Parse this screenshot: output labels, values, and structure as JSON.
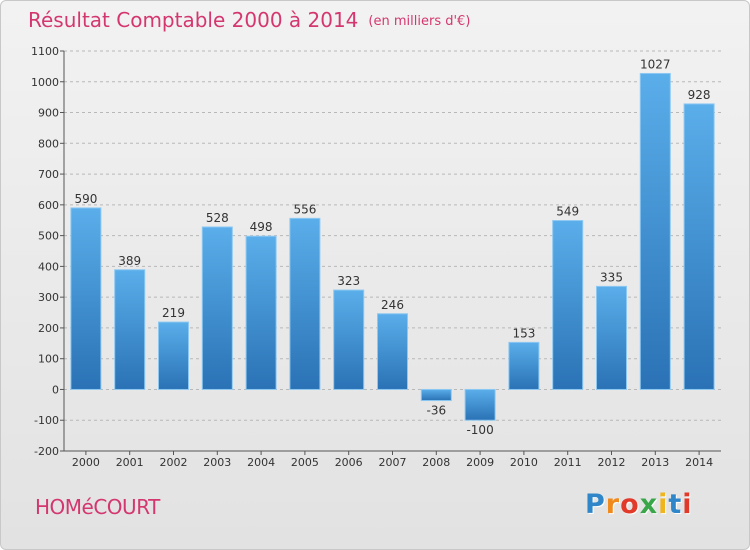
{
  "header": {
    "title": "Résultat Comptable 2000 à 2014",
    "unit": "(en milliers d'€)"
  },
  "footer": {
    "commune": "HOMéCOURT",
    "brand": {
      "letters": [
        "P",
        "r",
        "o",
        "x",
        "i",
        "t",
        "i"
      ],
      "colors": [
        "#2f86c8",
        "#f08a1c",
        "#e23a2a",
        "#3aa64a",
        "#f0b41c",
        "#2f86c8",
        "#e23a2a"
      ]
    }
  },
  "colors": {
    "title": "#d4376f",
    "bar_light": "#5aaeea",
    "bar_dark": "#2a72b5"
  },
  "chart_data": {
    "type": "bar",
    "title": "Résultat Comptable 2000 à 2014",
    "subtitle": "(en milliers d'€)",
    "categories": [
      "2000",
      "2001",
      "2002",
      "2003",
      "2004",
      "2005",
      "2006",
      "2007",
      "2008",
      "2009",
      "2010",
      "2011",
      "2012",
      "2013",
      "2014"
    ],
    "values": [
      590,
      389,
      219,
      528,
      498,
      556,
      323,
      246,
      -36,
      -100,
      153,
      549,
      335,
      1027,
      928
    ],
    "ylim": [
      -200,
      1100
    ],
    "yticks": [
      -200,
      -100,
      0,
      100,
      200,
      300,
      400,
      500,
      600,
      700,
      800,
      900,
      1000,
      1100
    ],
    "grid": "horizontal dashed",
    "xlabel": "",
    "ylabel": ""
  }
}
